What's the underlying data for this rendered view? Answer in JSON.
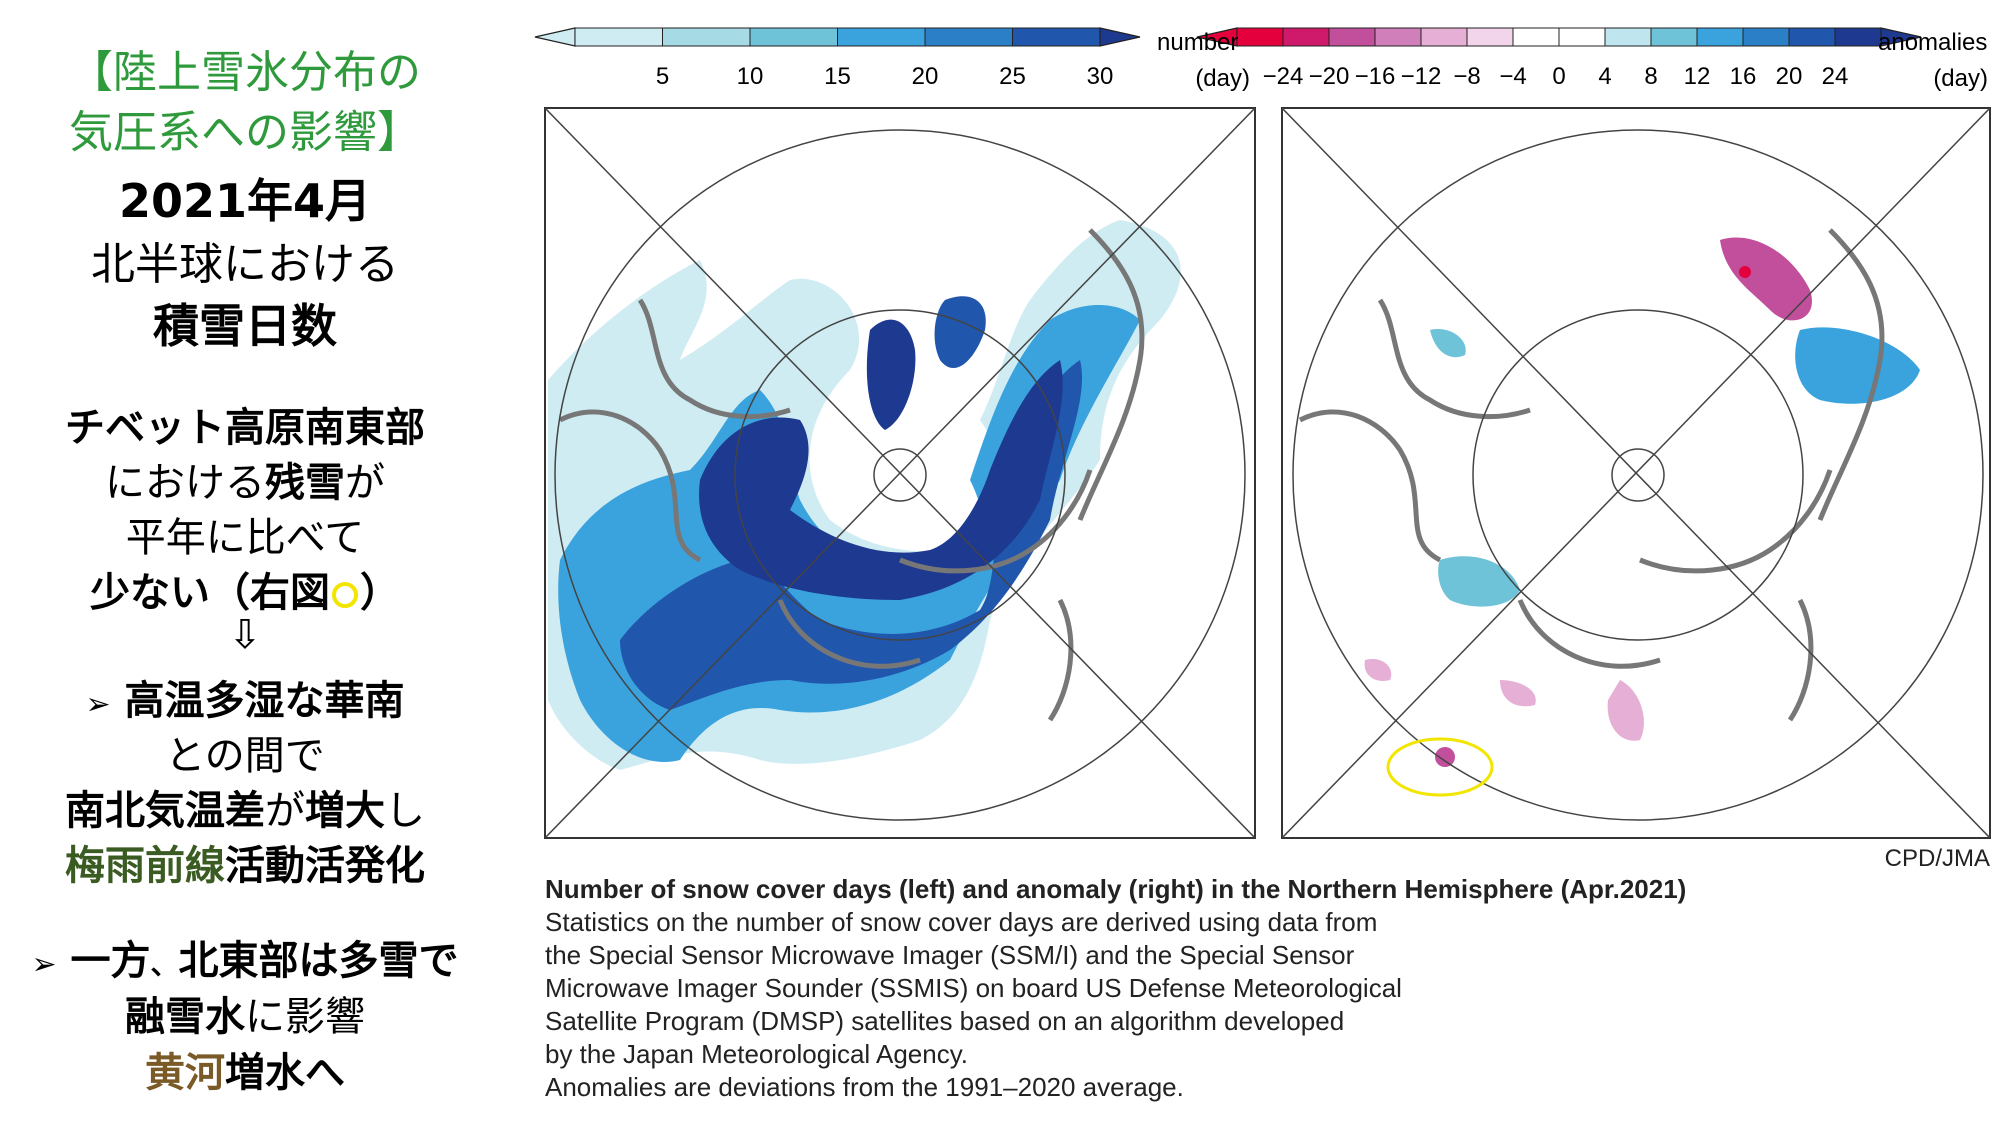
{
  "left_panel": {
    "heading_line1": "【陸上雪氷分布の",
    "heading_line2": "気圧系への影響】",
    "date": "2021年4月",
    "region": "北半球における",
    "topic": "積雪日数",
    "p1_line1": "チベット高原南東部",
    "p1_line2a": "における",
    "p1_line2b": "残雪",
    "p1_line2c": "が",
    "p1_line3": "平年に比べて",
    "p1_line4a": "少ない",
    "p1_line4b": "（右図",
    "p1_line4c": "）",
    "arrow": "⇩",
    "b1_marker": "➢",
    "b1_line1": "高温多湿な華南",
    "b1_line2": "との間で",
    "b1_line3a": "南北気温差",
    "b1_line3b": "が",
    "b1_line3c": "増大",
    "b1_line3d": "し",
    "b1_line4a": "梅雨前線",
    "b1_line4b": "活動活発化",
    "b2_marker": "➢",
    "b2_line1a": "一方",
    "b2_line1b": "、",
    "b2_line1c": "北東部は多雪で",
    "b2_line2a": "融雪水",
    "b2_line2b": "に影響",
    "b2_line3a": "黄河",
    "b2_line3b": "増水へ"
  },
  "left_colorbar": {
    "ticks": [
      "5",
      "10",
      "15",
      "20",
      "25",
      "30"
    ],
    "unit_line1": "number",
    "unit_line2": "(day)",
    "colors": [
      "#cfecf3",
      "#a6dbe6",
      "#6ec3d8",
      "#3aa3de",
      "#2a7fc6",
      "#2156ad",
      "#1e3990"
    ]
  },
  "right_colorbar": {
    "ticks": [
      "−24",
      "−20",
      "−16",
      "−12",
      "−8",
      "−4",
      "0",
      "4",
      "8",
      "12",
      "16",
      "20",
      "24"
    ],
    "unit_line1": "anomalies",
    "unit_line2": "(day)",
    "neg_colors": [
      "#e4003c",
      "#cf1a6b",
      "#c24f9b",
      "#d17fba",
      "#e6b0d6",
      "#f2d5ea"
    ],
    "pos_colors": [
      "#bfe6ee",
      "#6ec3d8",
      "#3aa3de",
      "#2a7fc6",
      "#2156ad",
      "#1e3990"
    ]
  },
  "credit": "CPD/JMA",
  "caption": {
    "title": "Number of snow cover days (left) and anomaly (right) in the Northern Hemisphere (Apr.2021)",
    "line1": "Statistics on the number of snow cover days are derived using data from",
    "line2": "the Special Sensor Microwave Imager (SSM/I) and the Special Sensor",
    "line3": "Microwave Imager Sounder (SSMIS) on board US Defense Meteorological",
    "line4": "Satellite Program (DMSP) satellites based on an algorithm developed",
    "line5": "by the Japan Meteorological Agency.",
    "line6": "Anomalies are deviations from the 1991–2020 average."
  },
  "highlight_color": "#f2e500"
}
